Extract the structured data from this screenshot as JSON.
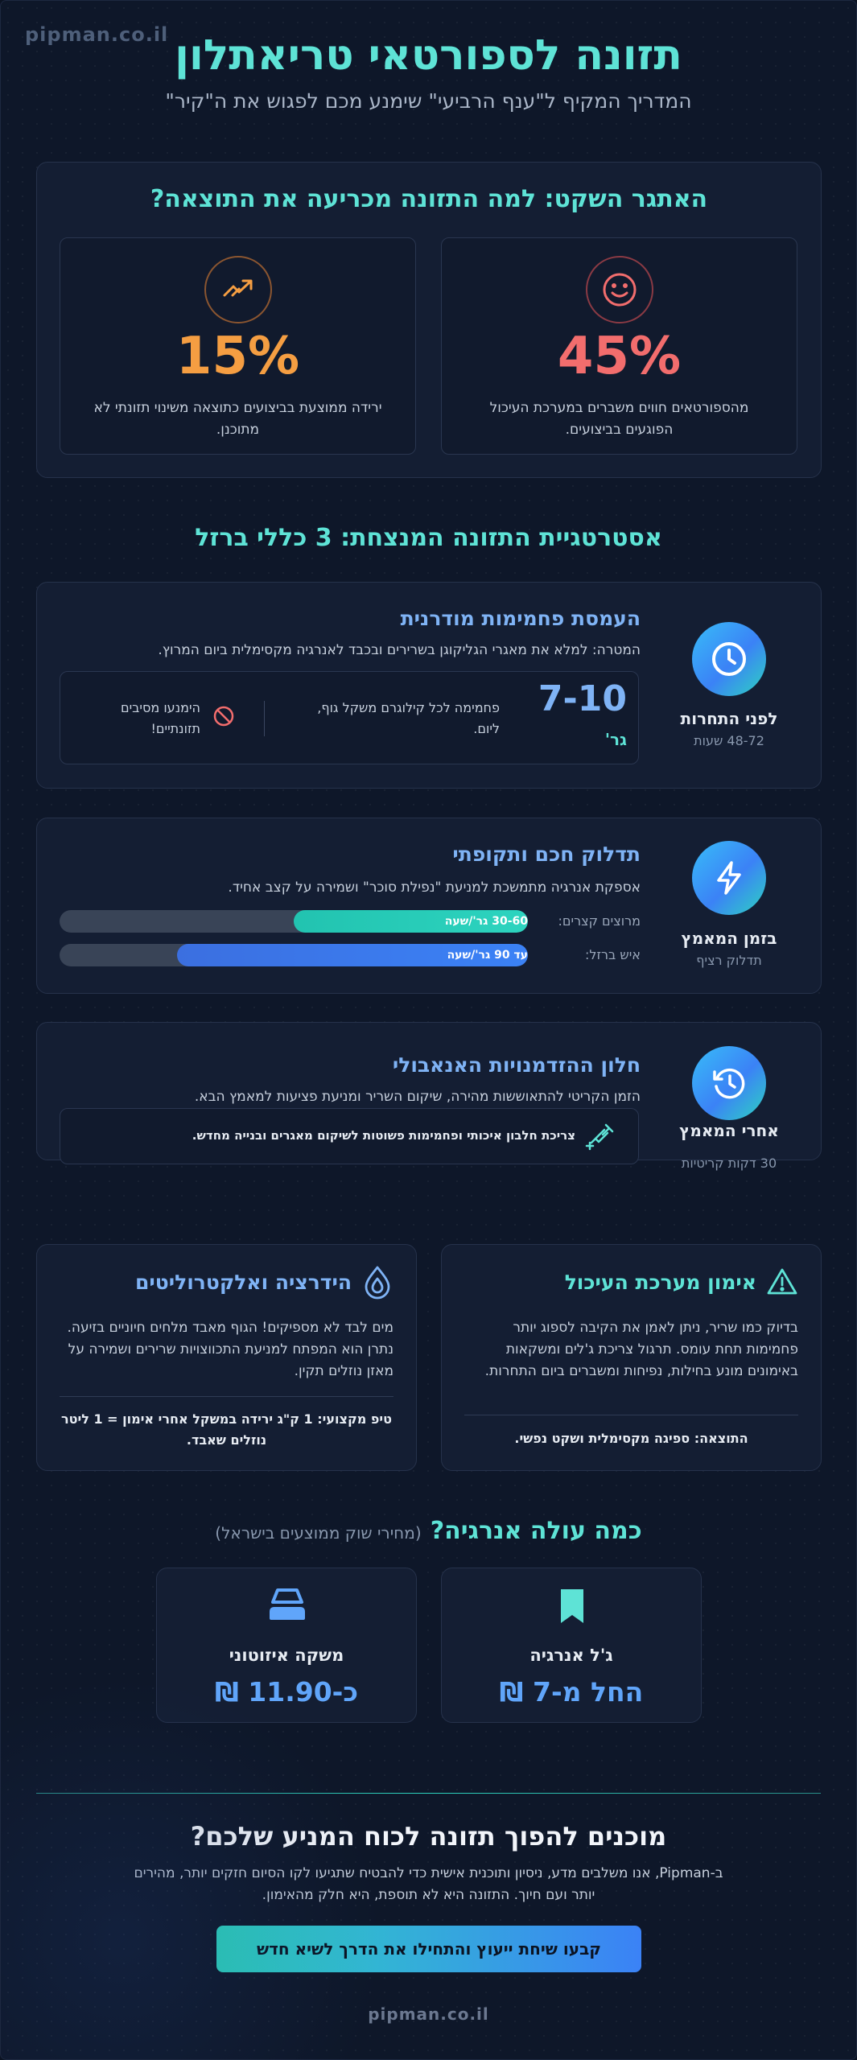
{
  "brand": "pipman.co.il",
  "header": {
    "title": "תזונה לספורטאי טריאתלון",
    "subtitle": "המדריך המקיף ל\"ענף הרביעי\" שימנע מכם לפגוש את ה\"קיר\""
  },
  "challenge": {
    "title": "האתגר השקט: למה התזונה מכריעה את התוצאה?",
    "stats": [
      {
        "value": "45%",
        "text": "מהספורטאים חווים משברים במערכת העיכול הפוגעים בביצועים.",
        "icon": "face-icon",
        "color": "#f26d6d"
      },
      {
        "value": "15%",
        "text": "ירידה ממוצעת בביצועים כתוצאה משינוי תזונתי לא מתוכנן.",
        "icon": "trend-icon",
        "color": "#f59e42"
      }
    ]
  },
  "strategy": {
    "title": "אסטרטגיית התזונה המנצחת: 3 כללי ברזל",
    "blocks": [
      {
        "side_title": "לפני התחרות",
        "side_sub": "48-72 שעות",
        "icon": "clock-icon",
        "title": "העמסת פחמימות מודרנית",
        "desc": "המטרה: למלא את מאגרי הגליקוגן בשרירים ובכבד לאנרגיה מקסימלית ביום המרוץ.",
        "big_value": "7-10",
        "big_unit": "גר'",
        "value_text": "פחמימה לכל קילוגרם משקל גוף, ליום.",
        "warn_text": "הימנעו מסיבים תזונתיים!"
      },
      {
        "side_title": "בזמן המאמץ",
        "side_sub": "תדלוק רציף",
        "icon": "bolt-icon",
        "title": "תדלוק חכם ותקופתי",
        "desc": "אספקת אנרגיה מתמשכת למניעת \"נפילת סוכר\" ושמירה על קצב אחיד.",
        "bars": [
          {
            "name": "מרוצים קצרים:",
            "label": "30-60 גר'/שעה",
            "fill": 0.5,
            "color": "#2dd4bf"
          },
          {
            "name": "איש ברזל:",
            "label": "עד 90 גר'/שעה",
            "fill": 0.75,
            "color": "#3b82f6"
          }
        ]
      },
      {
        "side_title": "אחרי המאמץ",
        "side_sub": "30 דקות קריטיות",
        "icon": "history-icon",
        "title": "חלון ההזדמנויות האנאבולי",
        "desc": "הזמן הקריטי להתאוששות מהירה, שיקום השריר ומניעת פציעות למאמץ הבא.",
        "note": "צריכת חלבון איכותי ופחמימות פשוטות לשיקום מאגרים ובנייה מחדש."
      }
    ]
  },
  "info": [
    {
      "title": "אימון מערכת העיכול",
      "icon": "warning-icon",
      "color": "#5ee3d6",
      "text": "בדיוק כמו שריר, ניתן לאמן את הקיבה לספוג יותר פחמימות תחת עומס. תרגול צריכת ג'לים ומשקאות באימונים מונע בחילות, נפיחות ומשברים ביום התחרות.",
      "tip": "התוצאה: ספיגה מקסימלית ושקט נפשי."
    },
    {
      "title": "הידרציה ואלקטרוליטים",
      "icon": "drop-icon",
      "color": "#7fb3f5",
      "text": "מים לבד לא מספיקים! הגוף מאבד מלחים חיוניים בזיעה. נתרן הוא המפתח למניעת התכווצויות שרירים ושמירה על מאזן נוזלים תקין.",
      "tip": "טיפ מקצועי: 1 ק\"ג ירידה במשקל אחרי אימון = 1 ליטר נוזלים שאבד."
    }
  ],
  "prices": {
    "title": "כמה עולה אנרגיה?",
    "note": "(מחירי שוק ממוצעים בישראל)",
    "items": [
      {
        "name": "ג'ל אנרגיה",
        "value": "החל מ-7 ₪",
        "icon": "bookmark-icon"
      },
      {
        "name": "משקה איזוטוני",
        "value": "כ-11.90 ₪",
        "icon": "bottle-icon"
      }
    ]
  },
  "cta": {
    "title": "מוכנים להפוך תזונה לכוח המניע שלכם?",
    "text_line1": "ב-Pipman, אנו משלבים מדע, ניסיון ותוכנית אישית כדי להבטיח שתגיעו לקו הסיום חזקים יותר, מהירים",
    "text_line2": "יותר ועם חיוך. התזונה היא לא תוספת, היא חלק מהאימון.",
    "button": "קבעו שיחת ייעוץ והתחילו את הדרך לשיא חדש"
  }
}
